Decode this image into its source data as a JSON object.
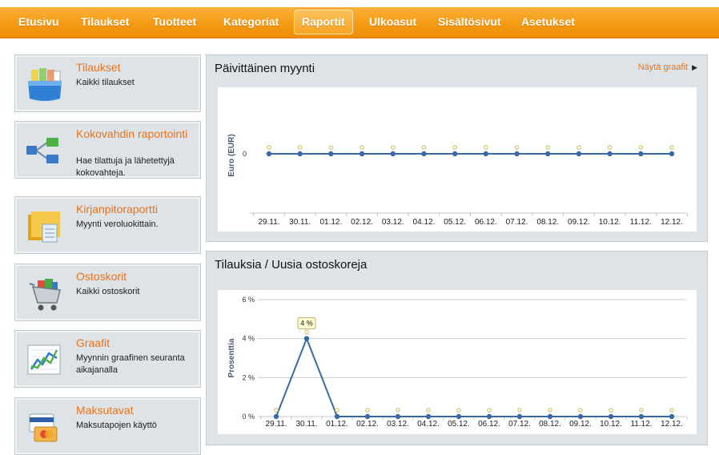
{
  "nav": {
    "items": [
      "Etusivu",
      "Tilaukset",
      "Tuotteet",
      "Kategoriat",
      "Raportit",
      "Ulkoasut",
      "Sisältösivut",
      "Asetukset"
    ],
    "active": "Raportit"
  },
  "cards": [
    {
      "title": "Tilaukset",
      "desc": "Kaikki tilaukset",
      "icon": "order-box-icon"
    },
    {
      "title": "Kokovahdin raportointi",
      "desc": "Hae tilattuja ja lähetettyjä kokovahteja.",
      "icon": "flow-diagram-icon"
    },
    {
      "title": "Kirjanpitoraportti",
      "desc": "Myynti veroluokittain.",
      "icon": "ledger-folder-icon"
    },
    {
      "title": "Ostoskorit",
      "desc": "Kaikki ostoskorit",
      "icon": "shopping-cart-icon"
    },
    {
      "title": "Graafit",
      "desc": "Myynnin graafinen seuranta aikajanalla",
      "icon": "line-graph-icon"
    },
    {
      "title": "Maksutavat",
      "desc": "Maksutapojen käyttö",
      "icon": "credit-card-icon"
    }
  ],
  "panel1": {
    "title": "Päivittäinen myynti",
    "link": "Näytä graafit"
  },
  "panel2": {
    "title": "Tilauksia / Uusia ostoskoreja"
  },
  "colors": {
    "accent": "#e8731a",
    "nav": "#f49a14",
    "series": "#3b6aa0"
  },
  "chart_data": [
    {
      "type": "line",
      "title": "Päivittäinen myynti",
      "ylabel": "Euro (EUR)",
      "categories": [
        "29.11.",
        "30.11.",
        "01.12.",
        "02.12.",
        "03.12.",
        "04.12.",
        "05.12.",
        "06.12.",
        "07.12.",
        "08.12.",
        "09.12.",
        "10.12.",
        "11.12.",
        "12.12."
      ],
      "yticks": [
        "0"
      ],
      "values": [
        0,
        0,
        0,
        0,
        0,
        0,
        0,
        0,
        0,
        0,
        0,
        0,
        0,
        0
      ]
    },
    {
      "type": "line",
      "title": "Tilauksia / Uusia ostoskoreja",
      "ylabel": "Prosenttia",
      "categories": [
        "29.11.",
        "30.11.",
        "01.12.",
        "02.12.",
        "03.12.",
        "04.12.",
        "05.12.",
        "06.12.",
        "07.12.",
        "08.12.",
        "09.12.",
        "10.12.",
        "11.12.",
        "12.12."
      ],
      "yticks": [
        "0 %",
        "2 %",
        "4 %",
        "6 %"
      ],
      "ylim": [
        0,
        6
      ],
      "values": [
        0,
        4,
        0,
        0,
        0,
        0,
        0,
        0,
        0,
        0,
        0,
        0,
        0,
        0
      ],
      "annotation": "4 %"
    }
  ]
}
